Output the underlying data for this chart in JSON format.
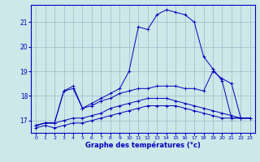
{
  "xlabel": "Graphe des températures (°c)",
  "bg_color": "#cce8e8",
  "line_color": "#0000bb",
  "grid_color": "#99bbcc",
  "xlim": [
    -0.5,
    23.5
  ],
  "ylim": [
    16.5,
    21.7
  ],
  "yticks": [
    17,
    18,
    19,
    20,
    21
  ],
  "xticks": [
    0,
    1,
    2,
    3,
    4,
    5,
    6,
    7,
    8,
    9,
    10,
    11,
    12,
    13,
    14,
    15,
    16,
    17,
    18,
    19,
    20,
    21,
    22,
    23
  ],
  "series": [
    {
      "x": [
        0,
        1,
        2,
        3,
        4,
        5,
        6,
        7,
        8,
        9,
        10,
        11,
        12,
        13,
        14,
        15,
        16,
        17,
        18,
        19,
        20,
        21,
        22,
        23
      ],
      "y": [
        16.7,
        16.8,
        16.7,
        16.8,
        16.9,
        16.9,
        17.0,
        17.1,
        17.2,
        17.3,
        17.4,
        17.5,
        17.6,
        17.6,
        17.6,
        17.6,
        17.5,
        17.4,
        17.3,
        17.2,
        17.1,
        17.1,
        17.1,
        17.1
      ]
    },
    {
      "x": [
        0,
        1,
        2,
        3,
        4,
        5,
        6,
        7,
        8,
        9,
        10,
        11,
        12,
        13,
        14,
        15,
        16,
        17,
        18,
        19,
        20,
        21,
        22,
        23
      ],
      "y": [
        16.8,
        16.9,
        16.9,
        17.0,
        17.1,
        17.1,
        17.2,
        17.3,
        17.5,
        17.6,
        17.7,
        17.8,
        17.9,
        17.9,
        17.9,
        17.8,
        17.7,
        17.6,
        17.5,
        17.4,
        17.3,
        17.2,
        17.1,
        17.1
      ]
    },
    {
      "x": [
        0,
        1,
        2,
        3,
        4,
        5,
        6,
        7,
        8,
        9,
        10,
        11,
        12,
        13,
        14,
        15,
        16,
        17,
        18,
        19,
        20,
        21,
        22,
        23
      ],
      "y": [
        16.8,
        16.9,
        16.9,
        18.2,
        18.3,
        17.5,
        17.6,
        17.8,
        17.9,
        18.1,
        18.2,
        18.3,
        18.3,
        18.4,
        18.4,
        18.4,
        18.3,
        18.3,
        18.2,
        19.0,
        18.7,
        18.5,
        17.1,
        17.1
      ]
    },
    {
      "x": [
        0,
        1,
        2,
        3,
        4,
        5,
        6,
        7,
        8,
        9,
        10,
        11,
        12,
        13,
        14,
        15,
        16,
        17,
        18,
        19,
        20,
        21,
        22,
        23
      ],
      "y": [
        16.8,
        16.9,
        16.9,
        18.2,
        18.4,
        17.5,
        17.7,
        17.9,
        18.1,
        18.3,
        19.0,
        20.8,
        20.7,
        21.3,
        21.5,
        21.4,
        21.3,
        21.0,
        19.6,
        19.1,
        18.6,
        17.1,
        17.1,
        17.1
      ]
    }
  ]
}
